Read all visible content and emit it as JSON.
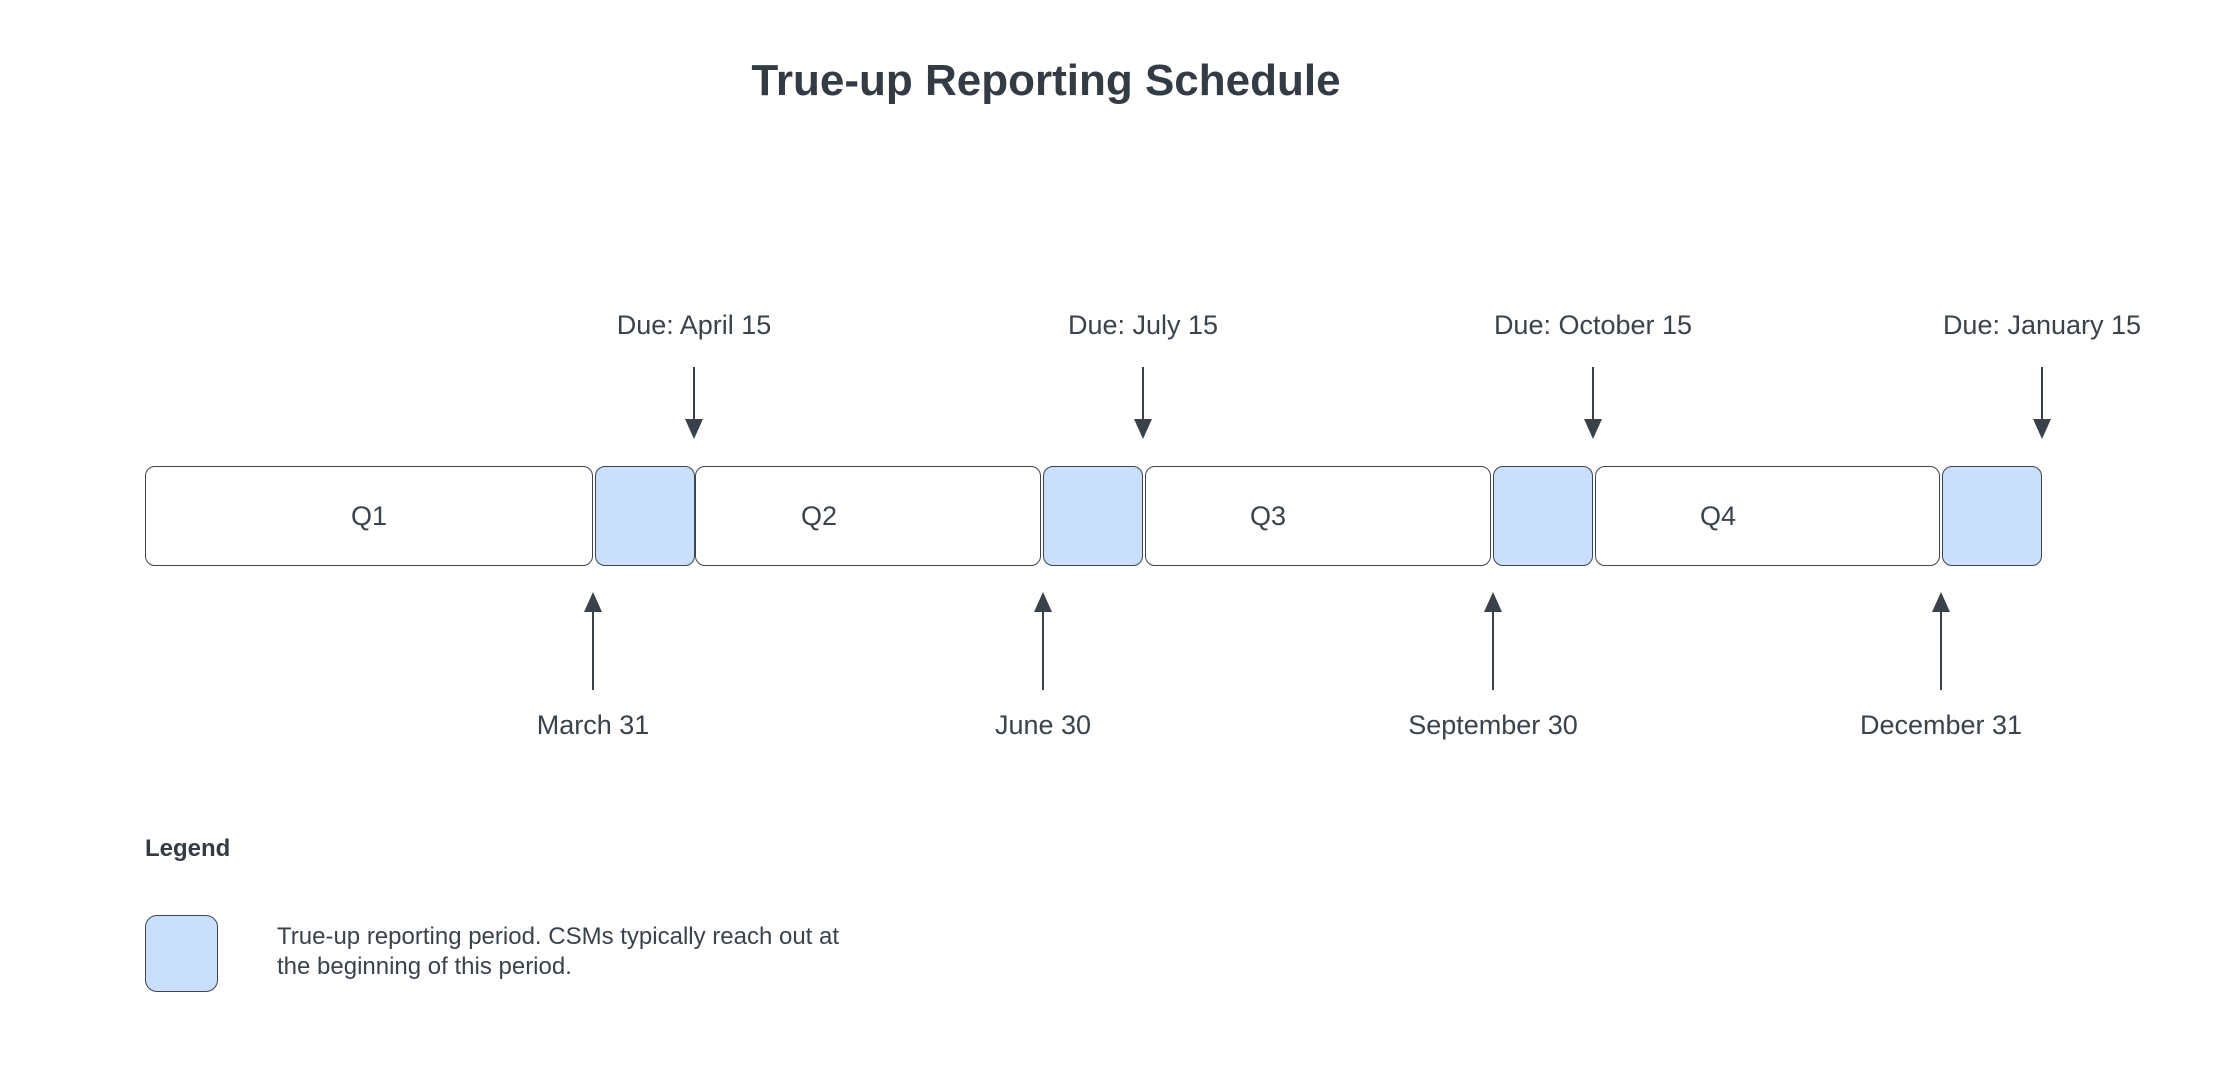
{
  "diagram": {
    "title": "True-up Reporting Schedule",
    "quarters": [
      {
        "label": "Q1"
      },
      {
        "label": "Q2"
      },
      {
        "label": "Q3"
      },
      {
        "label": "Q4"
      }
    ],
    "due_markers": [
      {
        "label": "Due: April 15"
      },
      {
        "label": "Due: July 15"
      },
      {
        "label": "Due: October 15"
      },
      {
        "label": "Due: January 15"
      }
    ],
    "quarter_end_markers": [
      {
        "label": "March 31"
      },
      {
        "label": "June 30"
      },
      {
        "label": "September 30"
      },
      {
        "label": "December 31"
      }
    ]
  },
  "legend": {
    "heading": "Legend",
    "description_line1": "True-up reporting period. CSMs typically reach out at",
    "description_line2": "the beginning of this period."
  },
  "colors": {
    "highlight_fill": "#c9dffc",
    "outline": "#3c4650",
    "text": "#3a424b",
    "title_text": "#333b44",
    "background": "#ffffff"
  }
}
